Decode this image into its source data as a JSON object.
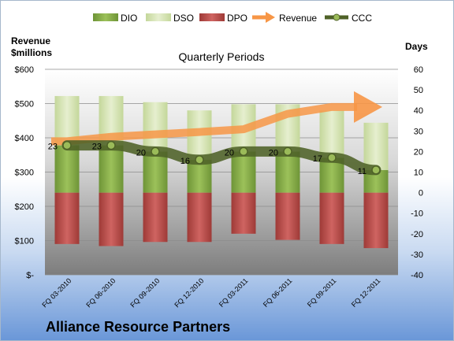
{
  "company": "Alliance Resource Partners",
  "chart_data": {
    "type": "bar",
    "title": "Quarterly Periods",
    "left_axis_label_lines": [
      "Revenue",
      "$millions"
    ],
    "right_axis_label": "Days",
    "categories": [
      "FQ 03-2010",
      "FQ 06-2010",
      "FQ 09-2010",
      "FQ 12-2010",
      "FQ 03-2011",
      "FQ 06-2011",
      "FQ 09-2011",
      "FQ 12-2011"
    ],
    "y_left": {
      "min": 0,
      "max": 600,
      "ticks": [
        0,
        100,
        200,
        300,
        400,
        500,
        600
      ],
      "tick_labels": [
        "$-",
        "$100",
        "$200",
        "$300",
        "$400",
        "$500",
        "$600"
      ]
    },
    "y_right": {
      "min": -40,
      "max": 60,
      "ticks": [
        -40,
        -30,
        -20,
        -10,
        0,
        10,
        20,
        30,
        40,
        50,
        60
      ]
    },
    "legend": {
      "position": "top",
      "entries": [
        "DIO",
        "DSO",
        "DPO",
        "Revenue",
        "CCC"
      ]
    },
    "grid": true,
    "series": [
      {
        "name": "DIO",
        "kind": "stacked-bar",
        "axis": "right",
        "color": "#8fb34e",
        "values": [
          23,
          23,
          20,
          16,
          20,
          20,
          17,
          11
        ]
      },
      {
        "name": "DSO",
        "kind": "stacked-bar",
        "axis": "right",
        "color": "#d7e4b2",
        "values": [
          24,
          24,
          24,
          24,
          23,
          23,
          23,
          23
        ]
      },
      {
        "name": "DPO",
        "kind": "bar",
        "axis": "right",
        "color": "#c0504d",
        "values": [
          -25,
          -26,
          -24,
          -24,
          -20,
          -23,
          -25,
          -27
        ]
      },
      {
        "name": "Revenue",
        "kind": "arrow-line",
        "axis": "left",
        "color": "#f79646",
        "values": [
          390,
          403,
          410,
          417,
          425,
          470,
          490,
          490
        ]
      },
      {
        "name": "CCC",
        "kind": "line",
        "axis": "right",
        "color": "#4f6228",
        "values": [
          23,
          23,
          20,
          16,
          20,
          20,
          17,
          11
        ],
        "labels": [
          "23",
          "23",
          "20",
          "16",
          "20",
          "20",
          "17",
          "11"
        ]
      }
    ]
  }
}
